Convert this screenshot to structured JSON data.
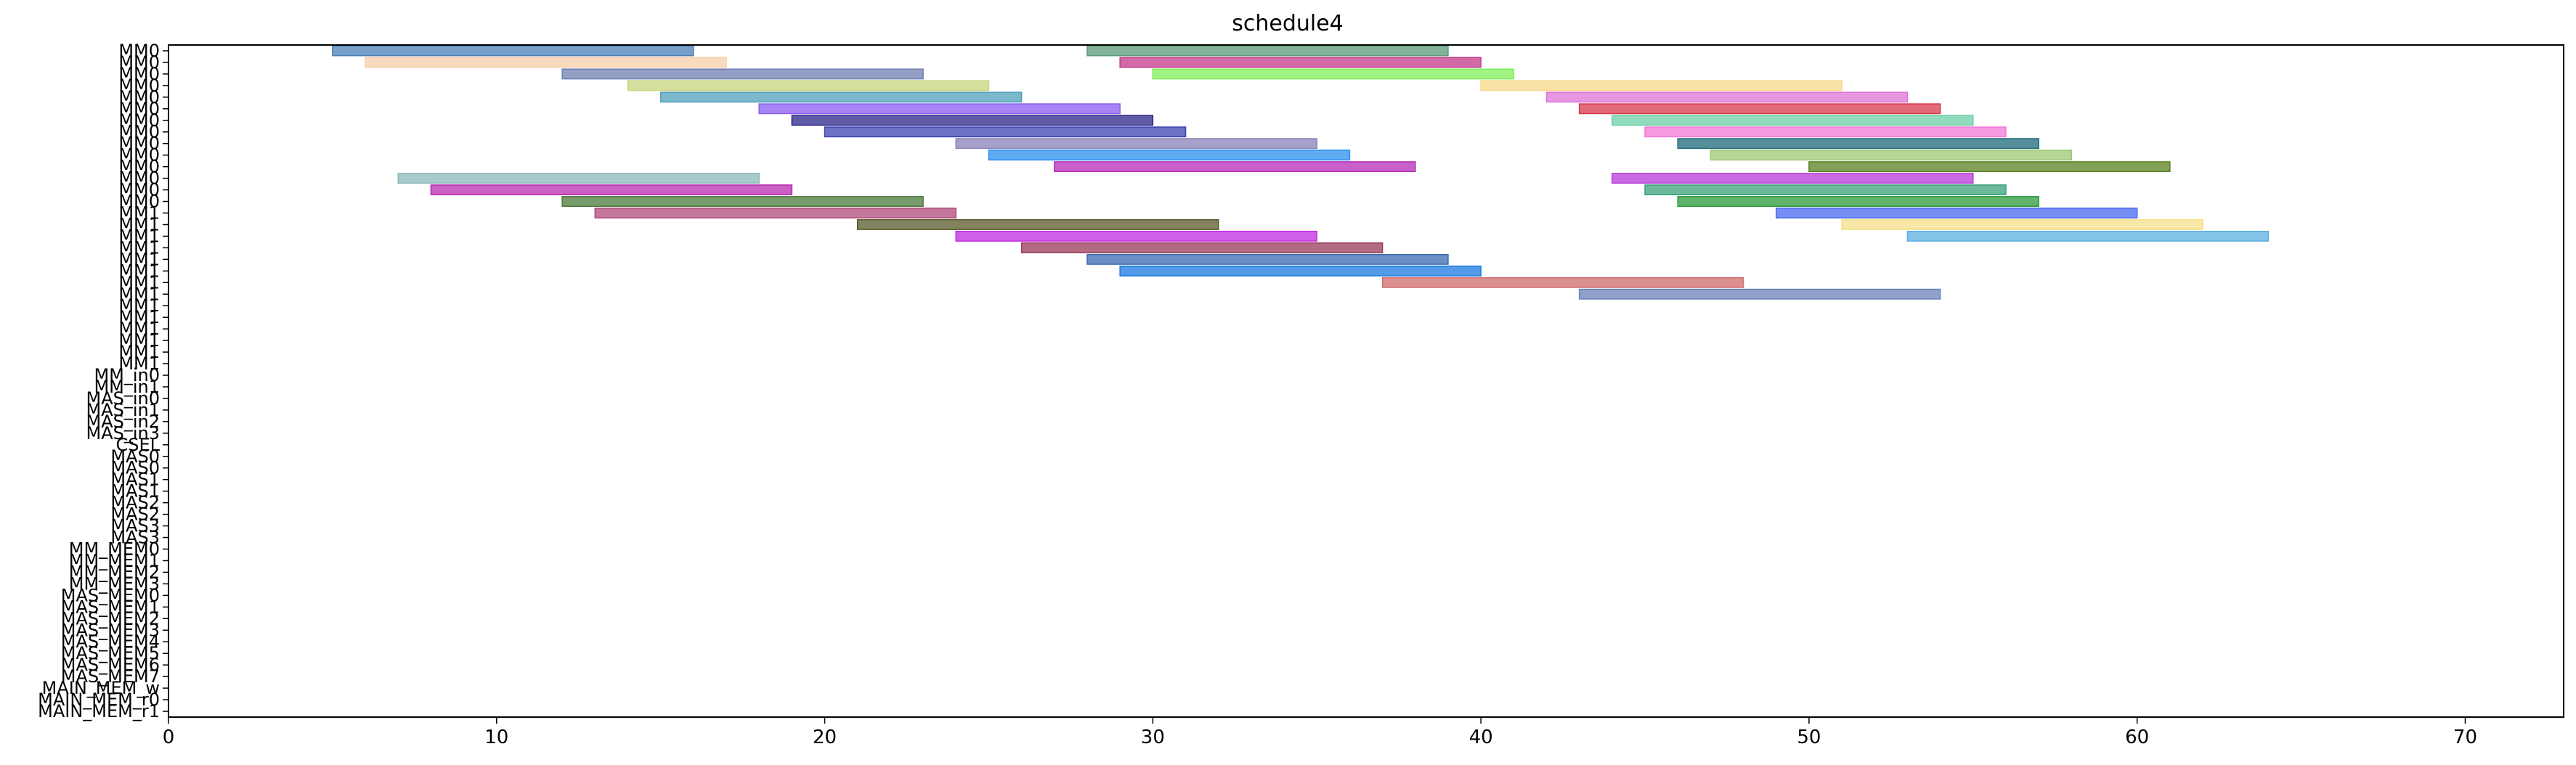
{
  "chart_data": {
    "type": "gantt",
    "title": "schedule4",
    "xlim": [
      0,
      73
    ],
    "x_ticks": [
      0,
      10,
      20,
      30,
      40,
      50,
      60,
      70
    ],
    "grid": false,
    "row_labels": [
      "MM0",
      "MM0",
      "MM0",
      "MM0",
      "MM0",
      "MM0",
      "MM0",
      "MM0",
      "MM0",
      "MM0",
      "MM0",
      "MM0",
      "MM0",
      "MM0",
      "MM1",
      "MM1",
      "MM1",
      "MM1",
      "MM1",
      "MM1",
      "MM1",
      "MM1",
      "MM1",
      "MM1",
      "MM1",
      "MM1",
      "MM1",
      "MM1",
      "MM_in0",
      "MM_in1",
      "MAS_in0",
      "MAS_in1",
      "MAS_in2",
      "MAS_in3",
      "CSEL",
      "MAS0",
      "MAS0",
      "MAS1",
      "MAS1",
      "MAS2",
      "MAS2",
      "MAS3",
      "MAS3",
      "MM_MEM0",
      "MM_MEM1",
      "MM_MEM2",
      "MM_MEM3",
      "MAS_MEM0",
      "MAS_MEM1",
      "MAS_MEM2",
      "MAS_MEM3",
      "MAS_MEM4",
      "MAS_MEM5",
      "MAS_MEM6",
      "MAS_MEM7",
      "MAIN_MEM_w",
      "MAIN_MEM_r0",
      "MAIN_MEM_r1"
    ],
    "tasks": [
      {
        "row": 0,
        "start": 5,
        "end": 16,
        "color": "#4a7fb5"
      },
      {
        "row": 0,
        "start": 28,
        "end": 39,
        "color": "#5a9a7a"
      },
      {
        "row": 1,
        "start": 6,
        "end": 17,
        "color": "#f5cfa8"
      },
      {
        "row": 1,
        "start": 29,
        "end": 40,
        "color": "#c2388a"
      },
      {
        "row": 2,
        "start": 12,
        "end": 23,
        "color": "#6f7fb0"
      },
      {
        "row": 2,
        "start": 30,
        "end": 41,
        "color": "#7ff05a"
      },
      {
        "row": 3,
        "start": 14,
        "end": 25,
        "color": "#c7d67e"
      },
      {
        "row": 3,
        "start": 40,
        "end": 51,
        "color": "#f8d98a"
      },
      {
        "row": 4,
        "start": 15,
        "end": 26,
        "color": "#4fa0bb"
      },
      {
        "row": 4,
        "start": 42,
        "end": 53,
        "color": "#dd74d6"
      },
      {
        "row": 5,
        "start": 18,
        "end": 29,
        "color": "#8a5cf0"
      },
      {
        "row": 5,
        "start": 43,
        "end": 54,
        "color": "#d8394a"
      },
      {
        "row": 6,
        "start": 19,
        "end": 30,
        "color": "#2a2488"
      },
      {
        "row": 6,
        "start": 44,
        "end": 55,
        "color": "#6ecfa8"
      },
      {
        "row": 7,
        "start": 20,
        "end": 31,
        "color": "#3a42b0"
      },
      {
        "row": 7,
        "start": 45,
        "end": 56,
        "color": "#f278d6"
      },
      {
        "row": 8,
        "start": 24,
        "end": 35,
        "color": "#8a80b8"
      },
      {
        "row": 8,
        "start": 46,
        "end": 57,
        "color": "#1e6a7a"
      },
      {
        "row": 9,
        "start": 25,
        "end": 36,
        "color": "#2a90f0"
      },
      {
        "row": 9,
        "start": 47,
        "end": 58,
        "color": "#9ec874"
      },
      {
        "row": 10,
        "start": 27,
        "end": 38,
        "color": "#b52cb8"
      },
      {
        "row": 10,
        "start": 50,
        "end": 61,
        "color": "#5a8220"
      },
      {
        "row": 11,
        "start": 7,
        "end": 18,
        "color": "#8ab8b8"
      },
      {
        "row": 11,
        "start": 44,
        "end": 55,
        "color": "#b83ad8"
      },
      {
        "row": 12,
        "start": 8,
        "end": 19,
        "color": "#b82ab0"
      },
      {
        "row": 12,
        "start": 45,
        "end": 56,
        "color": "#3aa07a"
      },
      {
        "row": 13,
        "start": 12,
        "end": 23,
        "color": "#4a7a3a"
      },
      {
        "row": 13,
        "start": 46,
        "end": 57,
        "color": "#2a9a3a"
      },
      {
        "row": 14,
        "start": 13,
        "end": 24,
        "color": "#b04a7a"
      },
      {
        "row": 14,
        "start": 49,
        "end": 60,
        "color": "#4a6af0"
      },
      {
        "row": 15,
        "start": 21,
        "end": 32,
        "color": "#5a5a2a"
      },
      {
        "row": 15,
        "start": 51,
        "end": 62,
        "color": "#f5e08a"
      },
      {
        "row": 16,
        "start": 24,
        "end": 35,
        "color": "#c02ae0"
      },
      {
        "row": 16,
        "start": 53,
        "end": 64,
        "color": "#5ab0e0"
      },
      {
        "row": 17,
        "start": 26,
        "end": 37,
        "color": "#9a3a5a"
      },
      {
        "row": 18,
        "start": 28,
        "end": 39,
        "color": "#3a6ab0"
      },
      {
        "row": 19,
        "start": 29,
        "end": 40,
        "color": "#1a7ae0"
      },
      {
        "row": 20,
        "start": 37,
        "end": 48,
        "color": "#d06a6a"
      },
      {
        "row": 21,
        "start": 43,
        "end": 54,
        "color": "#6a80b8"
      }
    ]
  }
}
